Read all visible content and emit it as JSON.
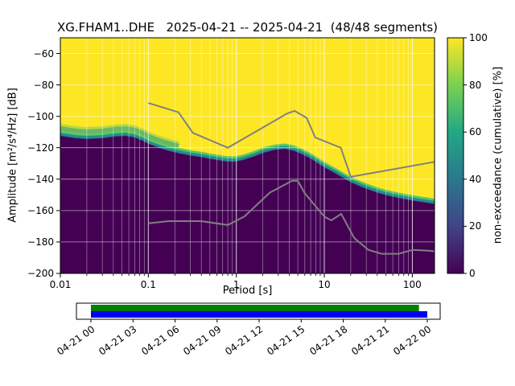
{
  "chart_data": {
    "type": "heatmap",
    "title": "XG.FHAM1..DHE   2025-04-21 -- 2025-04-21  (48/48 segments)",
    "xlabel": "Period [s]",
    "ylabel": "Amplitude [m²/s⁴/Hz] [dB]",
    "xlim": [
      0.01,
      179
    ],
    "ylim": [
      -200,
      -50
    ],
    "x_ticks": [
      0.01,
      0.1,
      1,
      10,
      100
    ],
    "x_tick_labels": [
      "0.01",
      "0.1",
      "1",
      "10",
      "100"
    ],
    "y_ticks": [
      -200,
      -180,
      -160,
      -140,
      -120,
      -100,
      -80,
      -60
    ],
    "y_tick_labels": [
      "−200",
      "−180",
      "−160",
      "−140",
      "−120",
      "−100",
      "−80",
      "−60"
    ],
    "grid": true,
    "colormap": "viridis",
    "colors": {
      "background": "#ffffff",
      "low": "#440154",
      "blue": "#31688e",
      "teal": "#21918c",
      "green": "#5ec962",
      "high": "#fde725",
      "grid": "#ffffff",
      "noise_model": "#808080",
      "frame": "#000000"
    },
    "colorbar": {
      "label": "non-exceedance (cumulative) [%]",
      "ticks": [
        0,
        20,
        40,
        60,
        80,
        100
      ],
      "tick_labels": [
        "0",
        "20",
        "40",
        "60",
        "80",
        "100"
      ],
      "gradient": [
        [
          "0%",
          "#440154"
        ],
        [
          "20%",
          "#414487"
        ],
        [
          "40%",
          "#2a788e"
        ],
        [
          "60%",
          "#22a884"
        ],
        [
          "80%",
          "#7ad151"
        ],
        [
          "100%",
          "#fde725"
        ]
      ]
    },
    "mode_boundary_db": [
      [
        0.01,
        -112.5
      ],
      [
        0.015,
        -114
      ],
      [
        0.02,
        -114.5
      ],
      [
        0.03,
        -114
      ],
      [
        0.042,
        -112.8
      ],
      [
        0.055,
        -112.5
      ],
      [
        0.07,
        -113.5
      ],
      [
        0.085,
        -115.5
      ],
      [
        0.1,
        -117.5
      ],
      [
        0.13,
        -120
      ],
      [
        0.17,
        -122
      ],
      [
        0.22,
        -123.5
      ],
      [
        0.3,
        -125
      ],
      [
        0.4,
        -126
      ],
      [
        0.55,
        -127.5
      ],
      [
        0.75,
        -128.7
      ],
      [
        0.95,
        -129
      ],
      [
        1.2,
        -127.8
      ],
      [
        1.6,
        -125.5
      ],
      [
        2.1,
        -123
      ],
      [
        2.8,
        -121.3
      ],
      [
        3.6,
        -120.8
      ],
      [
        4.5,
        -122
      ],
      [
        5.5,
        -124
      ],
      [
        7,
        -127
      ],
      [
        8.5,
        -130
      ],
      [
        10,
        -132.5
      ],
      [
        13,
        -136
      ],
      [
        16,
        -139
      ],
      [
        20,
        -142
      ],
      [
        26,
        -144.8
      ],
      [
        33,
        -147
      ],
      [
        42,
        -149
      ],
      [
        55,
        -150.8
      ],
      [
        70,
        -152
      ],
      [
        90,
        -153.2
      ],
      [
        115,
        -154.2
      ],
      [
        145,
        -155
      ],
      [
        179,
        -155.8
      ]
    ],
    "noise_models": {
      "nhnm": [
        [
          0.1,
          -91.5
        ],
        [
          0.22,
          -97.4
        ],
        [
          0.32,
          -110.5
        ],
        [
          0.8,
          -120.0
        ],
        [
          3.8,
          -98.1
        ],
        [
          4.6,
          -96.5
        ],
        [
          6.3,
          -101.0
        ],
        [
          7.9,
          -113.5
        ],
        [
          15.4,
          -120.0
        ],
        [
          20.0,
          -138.5
        ],
        [
          179,
          -129.0
        ]
      ],
      "nlnm": [
        [
          0.1,
          -168.1
        ],
        [
          0.17,
          -166.7
        ],
        [
          0.4,
          -166.7
        ],
        [
          0.8,
          -169.2
        ],
        [
          1.24,
          -163.7
        ],
        [
          2.4,
          -148.6
        ],
        [
          4.3,
          -141.1
        ],
        [
          5.0,
          -141.1
        ],
        [
          6.0,
          -149.0
        ],
        [
          10.0,
          -163.8
        ],
        [
          12.0,
          -166.2
        ],
        [
          15.6,
          -162.1
        ],
        [
          21.9,
          -177.5
        ],
        [
          31.6,
          -185.0
        ],
        [
          45.0,
          -187.5
        ],
        [
          70.0,
          -187.5
        ],
        [
          101.0,
          -185.0
        ],
        [
          154.0,
          -185.5
        ],
        [
          179,
          -185.9
        ]
      ]
    },
    "timeline": {
      "tick_labels": [
        "04-21 00",
        "04-21 03",
        "04-21 06",
        "04-21 09",
        "04-21 12",
        "04-21 15",
        "04-21 18",
        "04-21 21",
        "04-22 00"
      ],
      "bars": [
        {
          "color": "#008000",
          "start_frac": 0.0,
          "end_frac": 0.975,
          "row": "top"
        },
        {
          "color": "#0000ee",
          "start_frac": 0.0,
          "end_frac": 1.0,
          "row": "bottom"
        }
      ]
    }
  }
}
